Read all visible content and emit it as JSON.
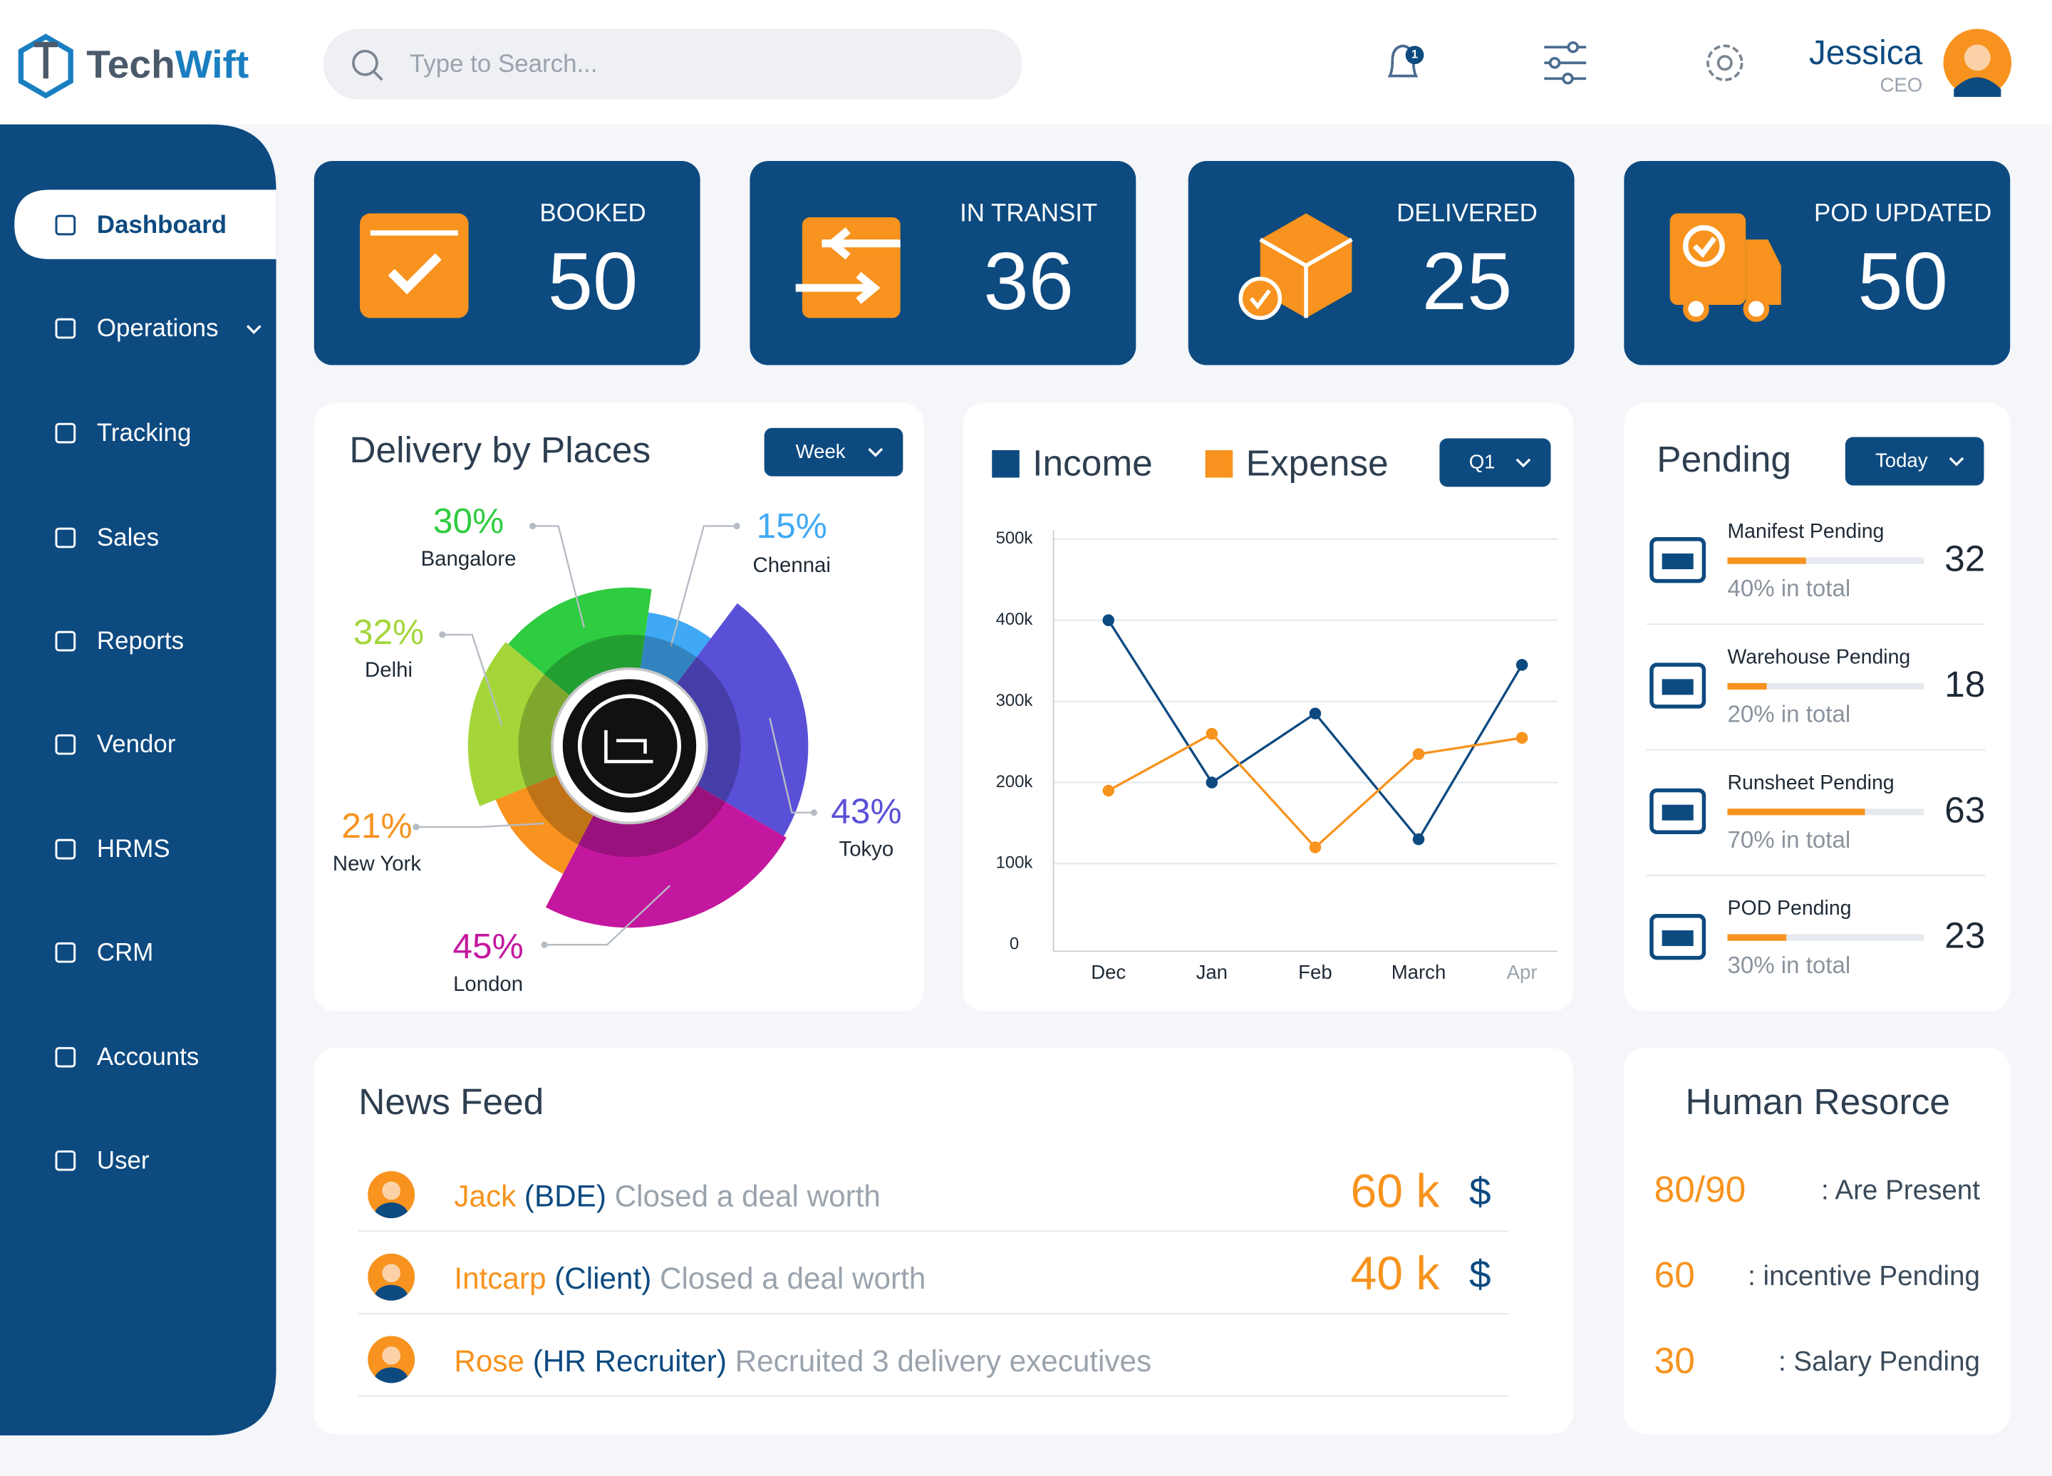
{
  "header": {
    "logo": [
      "Tech",
      "Wift"
    ],
    "search_placeholder": "Type to Search...",
    "notification_count": 1,
    "user": {
      "name": "Jessica",
      "role": "CEO"
    }
  },
  "sidebar": [
    "Dashboard",
    "Operations",
    "Tracking",
    "Sales",
    "Reports",
    "Vendor",
    "HRMS",
    "CRM",
    "Accounts",
    "User"
  ],
  "stats": [
    {
      "label": "BOOKED",
      "value": 50
    },
    {
      "label": "IN TRANSIT",
      "value": 36
    },
    {
      "label": "DELIVERED",
      "value": 25
    },
    {
      "label": "POD UPDATED",
      "value": 50
    }
  ],
  "chart_data": [
    {
      "type": "donut",
      "title": "Delivery by Places",
      "filter": "Week",
      "categories": [
        "Bangalore",
        "Chennai",
        "Tokyo",
        "London",
        "New York",
        "Delhi"
      ],
      "values": [
        30,
        15,
        43,
        45,
        21,
        32
      ],
      "value_labels": [
        "30%",
        "15%",
        "43%",
        "45%",
        "21%",
        "32%"
      ],
      "colors": [
        "#2ecc40",
        "#3fa9f5",
        "#5a50d8",
        "#c4179f",
        "#f7931e",
        "#a4d63a"
      ]
    },
    {
      "type": "line",
      "filter": "Q1",
      "categories": [
        "Dec",
        "Jan",
        "Feb",
        "March",
        "Apr"
      ],
      "series": [
        {
          "name": "Income",
          "color": "#0d4a80",
          "values": [
            400000,
            200000,
            285000,
            130000,
            345000
          ]
        },
        {
          "name": "Expense",
          "color": "#f7931e",
          "values": [
            190000,
            260000,
            120000,
            235000,
            255000
          ]
        }
      ],
      "ylim": [
        0,
        500000
      ],
      "yticks": [
        {
          "value": 0,
          "label": "0"
        },
        {
          "value": 100000,
          "label": "100k"
        },
        {
          "value": 200000,
          "label": "200k"
        },
        {
          "value": 300000,
          "label": "300k"
        },
        {
          "value": 400000,
          "label": "400k"
        },
        {
          "value": 500000,
          "label": "500k"
        }
      ],
      "grid": true
    }
  ],
  "pending": {
    "title": "Pending",
    "filter": "Today",
    "items": [
      {
        "name": "Manifest Pending",
        "count": 32,
        "percent": 40,
        "percent_label": "40% in total"
      },
      {
        "name": "Warehouse Pending",
        "count": 18,
        "percent": 20,
        "percent_label": "20% in total"
      },
      {
        "name": "Runsheet Pending",
        "count": 63,
        "percent": 70,
        "percent_label": "70% in total"
      },
      {
        "name": "POD Pending",
        "count": 23,
        "percent": 30,
        "percent_label": "30% in total"
      }
    ]
  },
  "news_feed": {
    "title": "News Feed",
    "items": [
      {
        "name": "Jack",
        "role": "(BDE)",
        "action": "Closed a deal worth",
        "amount": "60 k",
        "currency": "$"
      },
      {
        "name": "Intcarp",
        "role": "(Client)",
        "action": "Closed a deal worth",
        "amount": "40 k",
        "currency": "$"
      },
      {
        "name": "Rose",
        "role": "(HR Recruiter)",
        "action": "Recruited 3 delivery executives"
      }
    ]
  },
  "human_resource": {
    "title": "Human Resorce",
    "items": [
      {
        "value": "80/90",
        "label": ": Are Present"
      },
      {
        "value": 60,
        "label": ": incentive Pending"
      },
      {
        "value": 30,
        "label": ": Salary Pending"
      }
    ]
  }
}
